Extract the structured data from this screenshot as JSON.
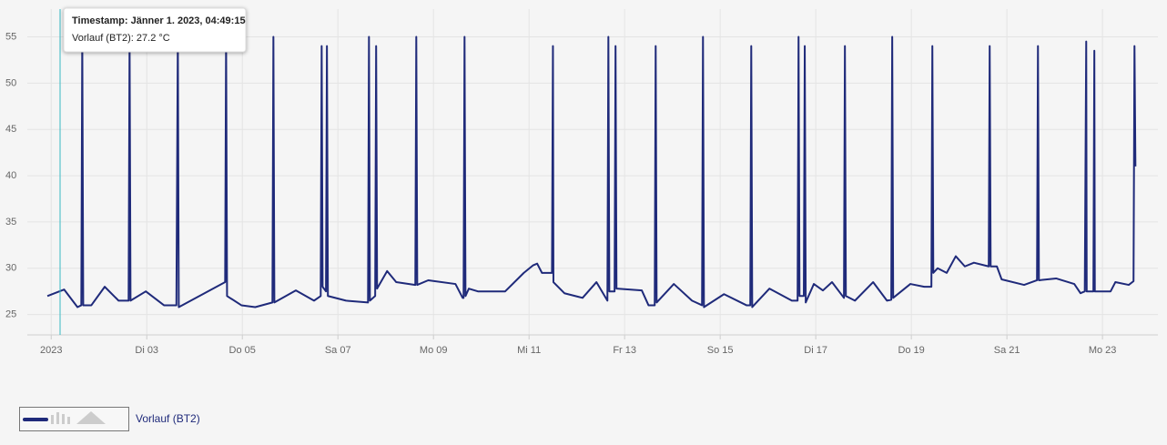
{
  "chart_data": {
    "type": "line",
    "x": [
      0.92,
      1.27,
      1.55,
      1.63,
      1.65,
      1.67,
      1.84,
      2.12,
      2.41,
      2.62,
      2.64,
      2.66,
      2.98,
      3.36,
      3.62,
      3.65,
      3.67,
      4.64,
      4.66,
      4.68,
      4.98,
      5.27,
      5.63,
      5.65,
      5.67,
      6.12,
      6.5,
      6.64,
      6.66,
      6.68,
      6.75,
      6.77,
      6.79,
      7.17,
      7.63,
      7.65,
      7.67,
      7.78,
      7.8,
      7.82,
      8.03,
      8.22,
      8.62,
      8.64,
      8.66,
      8.89,
      9.46,
      9.61,
      9.63,
      9.65,
      9.67,
      9.74,
      9.93,
      10.5,
      10.89,
      11.08,
      11.17,
      11.27,
      11.48,
      11.5,
      11.51,
      11.74,
      12.12,
      12.41,
      12.64,
      12.66,
      12.68,
      12.79,
      12.81,
      12.83,
      13.36,
      13.5,
      13.63,
      13.65,
      13.67,
      14.03,
      14.41,
      14.62,
      14.64,
      14.66,
      15.08,
      15.55,
      15.63,
      15.65,
      15.67,
      16.03,
      16.5,
      16.62,
      16.64,
      16.66,
      16.75,
      16.77,
      16.79,
      16.96,
      17.15,
      17.34,
      17.59,
      17.61,
      17.63,
      17.82,
      18.2,
      18.49,
      18.58,
      18.6,
      18.62,
      18.98,
      19.27,
      19.42,
      19.44,
      19.46,
      19.55,
      19.74,
      19.93,
      20.12,
      20.31,
      20.62,
      20.64,
      20.66,
      20.79,
      20.89,
      21.36,
      21.63,
      21.65,
      21.67,
      22.03,
      22.41,
      22.54,
      22.63,
      22.66,
      22.67,
      22.81,
      22.83,
      22.84,
      23.17,
      23.27,
      23.55,
      23.65,
      23.67,
      23.69
    ],
    "series": [
      {
        "name": "Vorlauf (BT2)",
        "color": "#1f2a7a",
        "values": [
          27.0,
          27.7,
          25.8,
          26.0,
          55,
          26,
          26,
          28,
          26.5,
          26.5,
          55,
          26.5,
          27.5,
          26,
          26,
          55,
          25.8,
          28.5,
          55,
          27,
          26,
          25.8,
          26.3,
          55,
          26.3,
          27.6,
          26.5,
          27,
          54,
          28,
          27.5,
          54,
          27,
          26.5,
          26.3,
          55,
          26.5,
          27,
          54,
          27.8,
          29.7,
          28.5,
          28.2,
          55,
          28.2,
          28.7,
          28.3,
          26.8,
          26.8,
          55,
          27,
          27.8,
          27.5,
          27.5,
          29.5,
          30.3,
          30.5,
          29.5,
          29.5,
          54,
          28.5,
          27.3,
          26.8,
          28.5,
          26.5,
          55,
          27.5,
          27.5,
          54,
          27.8,
          27.6,
          26,
          26,
          54,
          26.3,
          28.3,
          26.5,
          26,
          55,
          25.8,
          27.2,
          26,
          26,
          54,
          25.8,
          27.8,
          26.5,
          26.5,
          55,
          27,
          27,
          54,
          26.3,
          28.3,
          27.6,
          28.5,
          26.8,
          54,
          27,
          26.5,
          28.5,
          26.5,
          26.6,
          55,
          26.8,
          28.3,
          28,
          28,
          54,
          29.5,
          30,
          29.5,
          31.3,
          30.2,
          30.6,
          30.2,
          54,
          30.2,
          30.2,
          28.8,
          28.2,
          28.7,
          54,
          28.7,
          28.9,
          28.3,
          27.3,
          27.5,
          54.5,
          27.5,
          27.5,
          53.5,
          27.5,
          27.5,
          28.5,
          28.2,
          28.6,
          54,
          41
        ]
      }
    ],
    "xlim": [
      0.5,
      24.16
    ],
    "xticks": [
      {
        "value": 1,
        "label": "2023"
      },
      {
        "value": 3,
        "label": "Di 03"
      },
      {
        "value": 5,
        "label": "Do 05"
      },
      {
        "value": 7,
        "label": "Sa 07"
      },
      {
        "value": 9,
        "label": "Mo 09"
      },
      {
        "value": 11,
        "label": "Mi 11"
      },
      {
        "value": 13,
        "label": "Fr 13"
      },
      {
        "value": 15,
        "label": "So 15"
      },
      {
        "value": 17,
        "label": "Di 17"
      },
      {
        "value": 19,
        "label": "Do 19"
      },
      {
        "value": 21,
        "label": "Sa 21"
      },
      {
        "value": 23,
        "label": "Mo 23"
      }
    ],
    "ylim": [
      22.8,
      58
    ],
    "yticks": [
      25,
      30,
      35,
      40,
      45,
      50,
      55
    ],
    "grid": true,
    "tooltip": {
      "title": "Timestamp: Jänner 1. 2023, 04:49:15",
      "text": "Vorlauf (BT2): 27.2 °C"
    }
  }
}
